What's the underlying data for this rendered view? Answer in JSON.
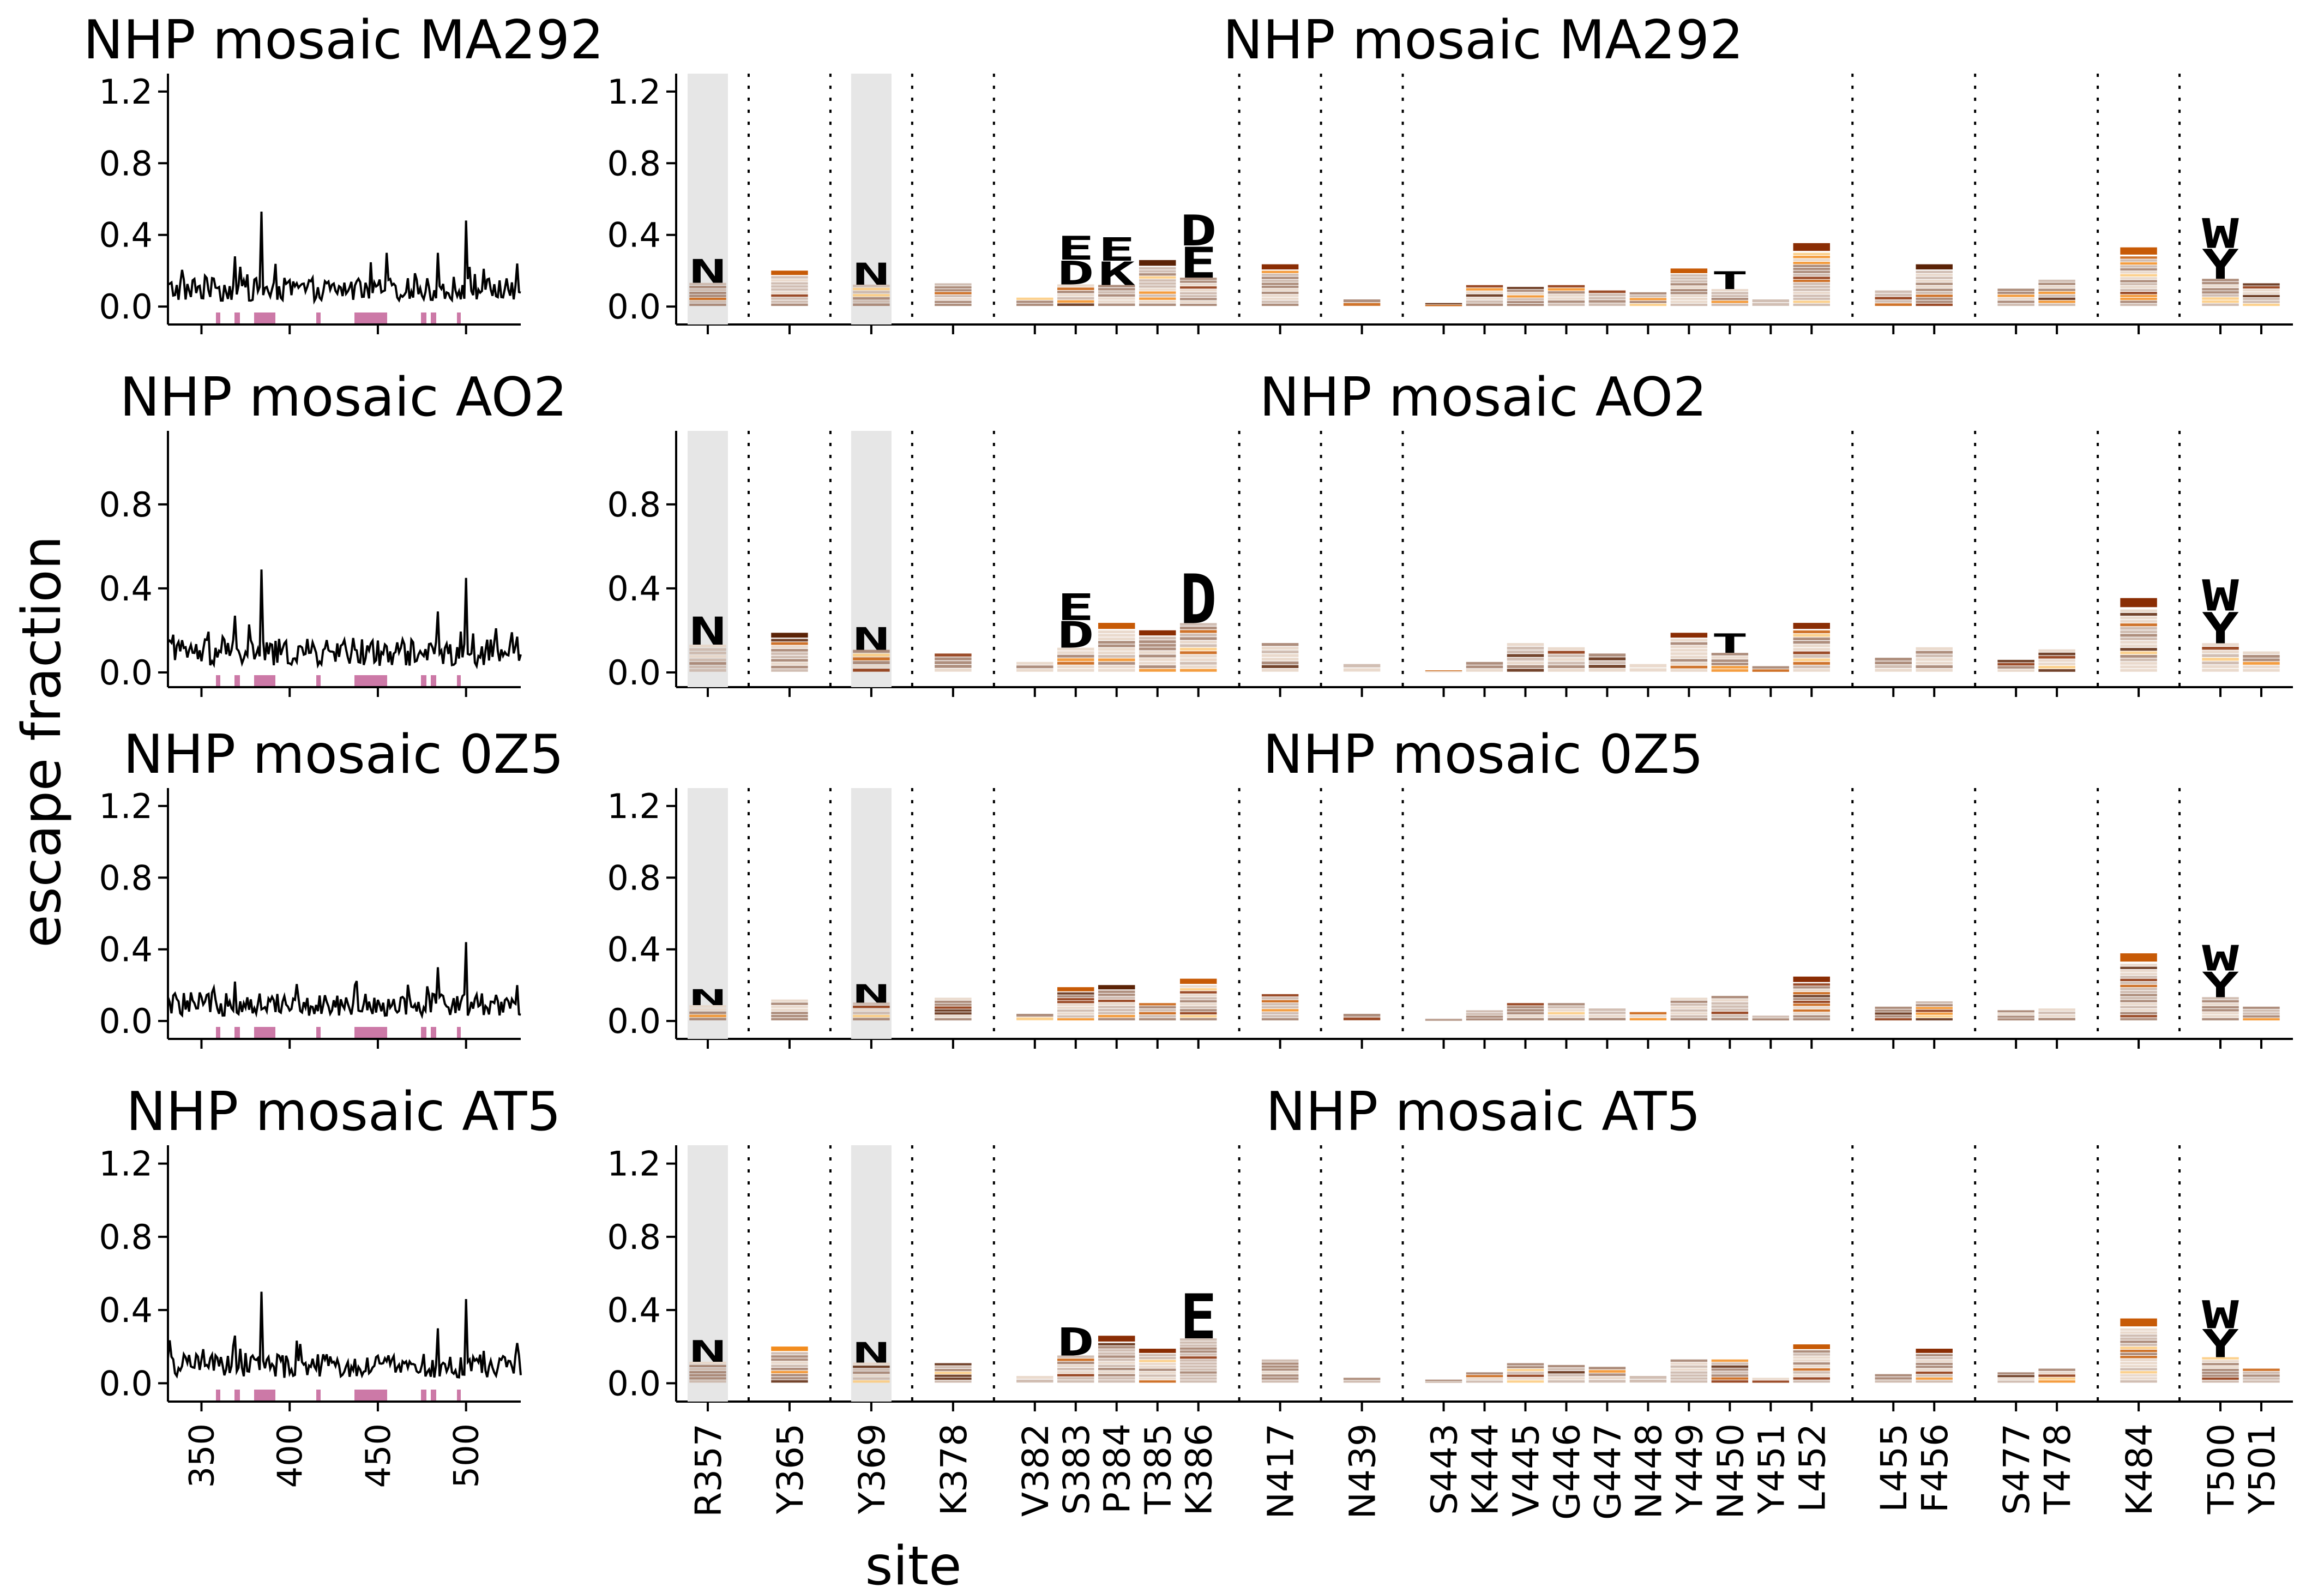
{
  "figure": {
    "ylabel": "escape fraction",
    "xlabel": "site"
  },
  "colors": {
    "line": "#000000",
    "region_marker": "#cc79a7",
    "highlight_band": "#e6e6e6",
    "letter_palette": [
      "#5b2307",
      "#8a2d04",
      "#c75a06",
      "#f28c1e",
      "#fbc97a",
      "#a07a66",
      "#c9b3a6",
      "#e6d3c4"
    ]
  },
  "chart_data": [
    {
      "type": "line",
      "title": "NHP mosaic MA292",
      "ylim": [
        -0.1,
        1.3
      ],
      "yticks": [
        "0.0",
        "0.4",
        "0.8",
        "1.2"
      ],
      "xticks": [
        "350",
        "400",
        "450",
        "500"
      ],
      "xlim": [
        331,
        531
      ],
      "peaks": [
        {
          "site": 384,
          "value": 0.53
        },
        {
          "site": 500,
          "value": 0.48
        },
        {
          "site": 369,
          "value": 0.28
        },
        {
          "site": 455,
          "value": 0.3
        },
        {
          "site": 484,
          "value": 0.3
        },
        {
          "site": 529,
          "value": 0.24
        }
      ]
    },
    {
      "type": "logo",
      "title": "NHP mosaic MA292",
      "ylim": [
        -0.1,
        1.3
      ],
      "yticks": [
        "0.0",
        "0.4",
        "0.8",
        "1.2"
      ],
      "sites": [
        "R357",
        "Y365",
        "Y369",
        "K378",
        "V382",
        "S383",
        "P384",
        "T385",
        "K386",
        "N417",
        "N439",
        "S443",
        "K444",
        "V445",
        "G446",
        "G447",
        "N448",
        "Y449",
        "N450",
        "Y451",
        "L452",
        "L455",
        "F456",
        "S477",
        "T478",
        "K484",
        "T500",
        "Y501"
      ],
      "site_values": [
        0.27,
        0.17,
        0.25,
        0.13,
        0.05,
        0.4,
        0.39,
        0.22,
        0.52,
        0.2,
        0.04,
        0.02,
        0.12,
        0.11,
        0.12,
        0.09,
        0.08,
        0.18,
        0.2,
        0.04,
        0.3,
        0.09,
        0.2,
        0.1,
        0.15,
        0.28,
        0.5,
        0.13
      ],
      "top_letters": [
        {
          "site": "R357",
          "letter": "N"
        },
        {
          "site": "Y369",
          "letter": "N"
        },
        {
          "site": "S383",
          "letter": "E"
        },
        {
          "site": "S383",
          "letter": "D"
        },
        {
          "site": "P384",
          "letter": "E"
        },
        {
          "site": "P384",
          "letter": "K"
        },
        {
          "site": "K386",
          "letter": "D"
        },
        {
          "site": "K386",
          "letter": "E"
        },
        {
          "site": "N450",
          "letter": "T"
        },
        {
          "site": "T500",
          "letter": "W"
        },
        {
          "site": "T500",
          "letter": "Y"
        }
      ]
    },
    {
      "type": "line",
      "title": "NHP mosaic AO2",
      "ylim": [
        -0.07,
        1.15
      ],
      "yticks": [
        "0.0",
        "0.4",
        "0.8"
      ],
      "xticks": [
        "350",
        "400",
        "450",
        "500"
      ],
      "xlim": [
        331,
        531
      ],
      "peaks": [
        {
          "site": 384,
          "value": 0.49
        },
        {
          "site": 500,
          "value": 0.45
        },
        {
          "site": 369,
          "value": 0.27
        },
        {
          "site": 484,
          "value": 0.29
        },
        {
          "site": 529,
          "value": 0.17
        }
      ]
    },
    {
      "type": "logo",
      "title": "NHP mosaic AO2",
      "ylim": [
        -0.07,
        1.15
      ],
      "yticks": [
        "0.0",
        "0.4",
        "0.8"
      ],
      "sites": [
        "R357",
        "Y365",
        "Y369",
        "K378",
        "V382",
        "S383",
        "P384",
        "T385",
        "K386",
        "N417",
        "N439",
        "S443",
        "K444",
        "V445",
        "G446",
        "G447",
        "N448",
        "Y449",
        "N450",
        "Y451",
        "L452",
        "L455",
        "F456",
        "S477",
        "T478",
        "K484",
        "T500",
        "Y501"
      ],
      "site_values": [
        0.27,
        0.16,
        0.22,
        0.09,
        0.05,
        0.38,
        0.2,
        0.17,
        0.48,
        0.14,
        0.04,
        0.01,
        0.05,
        0.14,
        0.12,
        0.09,
        0.04,
        0.16,
        0.19,
        0.03,
        0.2,
        0.07,
        0.12,
        0.06,
        0.11,
        0.3,
        0.45,
        0.1
      ],
      "top_letters": [
        {
          "site": "R357",
          "letter": "N"
        },
        {
          "site": "Y369",
          "letter": "N"
        },
        {
          "site": "S383",
          "letter": "E"
        },
        {
          "site": "S383",
          "letter": "D"
        },
        {
          "site": "K386",
          "letter": "D"
        },
        {
          "site": "N450",
          "letter": "T"
        },
        {
          "site": "T500",
          "letter": "W"
        },
        {
          "site": "T500",
          "letter": "Y"
        }
      ]
    },
    {
      "type": "line",
      "title": "NHP mosaic 0Z5",
      "ylim": [
        -0.1,
        1.3
      ],
      "yticks": [
        "0.0",
        "0.4",
        "0.8",
        "1.2"
      ],
      "xticks": [
        "350",
        "400",
        "450",
        "500"
      ],
      "xlim": [
        331,
        531
      ],
      "peaks": [
        {
          "site": 500,
          "value": 0.44
        },
        {
          "site": 484,
          "value": 0.3
        },
        {
          "site": 369,
          "value": 0.22
        },
        {
          "site": 529,
          "value": 0.2
        }
      ]
    },
    {
      "type": "logo",
      "title": "NHP mosaic 0Z5",
      "ylim": [
        -0.1,
        1.3
      ],
      "yticks": [
        "0.0",
        "0.4",
        "0.8",
        "1.2"
      ],
      "sites": [
        "R357",
        "Y365",
        "Y369",
        "K378",
        "V382",
        "S383",
        "P384",
        "T385",
        "K386",
        "N417",
        "N439",
        "S443",
        "K444",
        "V445",
        "G446",
        "G447",
        "N448",
        "Y449",
        "N450",
        "Y451",
        "L452",
        "L455",
        "F456",
        "S477",
        "T478",
        "K484",
        "T500",
        "Y501"
      ],
      "site_values": [
        0.18,
        0.12,
        0.21,
        0.13,
        0.04,
        0.16,
        0.17,
        0.1,
        0.2,
        0.15,
        0.04,
        0.01,
        0.06,
        0.1,
        0.1,
        0.07,
        0.05,
        0.13,
        0.14,
        0.03,
        0.21,
        0.08,
        0.11,
        0.06,
        0.07,
        0.32,
        0.43,
        0.08
      ],
      "top_letters": [
        {
          "site": "R357",
          "letter": "N"
        },
        {
          "site": "Y369",
          "letter": "N"
        },
        {
          "site": "T500",
          "letter": "W"
        },
        {
          "site": "T500",
          "letter": "Y"
        }
      ]
    },
    {
      "type": "line",
      "title": "NHP mosaic AT5",
      "ylim": [
        -0.1,
        1.3
      ],
      "yticks": [
        "0.0",
        "0.4",
        "0.8",
        "1.2"
      ],
      "xticks": [
        "350",
        "400",
        "450",
        "500"
      ],
      "xlim": [
        331,
        531
      ],
      "peaks": [
        {
          "site": 384,
          "value": 0.5
        },
        {
          "site": 500,
          "value": 0.46
        },
        {
          "site": 369,
          "value": 0.26
        },
        {
          "site": 484,
          "value": 0.3
        },
        {
          "site": 529,
          "value": 0.22
        }
      ]
    },
    {
      "type": "logo",
      "title": "NHP mosaic AT5",
      "ylim": [
        -0.1,
        1.3
      ],
      "yticks": [
        "0.0",
        "0.4",
        "0.8",
        "1.2"
      ],
      "sites": [
        "R357",
        "Y365",
        "Y369",
        "K378",
        "V382",
        "S383",
        "P384",
        "T385",
        "K386",
        "N417",
        "N439",
        "S443",
        "K444",
        "V445",
        "G446",
        "G447",
        "N448",
        "Y449",
        "N450",
        "Y451",
        "L452",
        "L455",
        "F456",
        "S477",
        "T478",
        "K484",
        "T500",
        "Y501"
      ],
      "site_values": [
        0.24,
        0.17,
        0.23,
        0.11,
        0.04,
        0.31,
        0.22,
        0.16,
        0.5,
        0.13,
        0.03,
        0.02,
        0.06,
        0.11,
        0.1,
        0.09,
        0.04,
        0.13,
        0.13,
        0.03,
        0.18,
        0.05,
        0.16,
        0.06,
        0.08,
        0.3,
        0.46,
        0.08
      ],
      "top_letters": [
        {
          "site": "R357",
          "letter": "N"
        },
        {
          "site": "Y369",
          "letter": "N"
        },
        {
          "site": "S383",
          "letter": "D"
        },
        {
          "site": "K386",
          "letter": "E"
        },
        {
          "site": "T500",
          "letter": "W"
        },
        {
          "site": "T500",
          "letter": "Y"
        }
      ]
    }
  ]
}
